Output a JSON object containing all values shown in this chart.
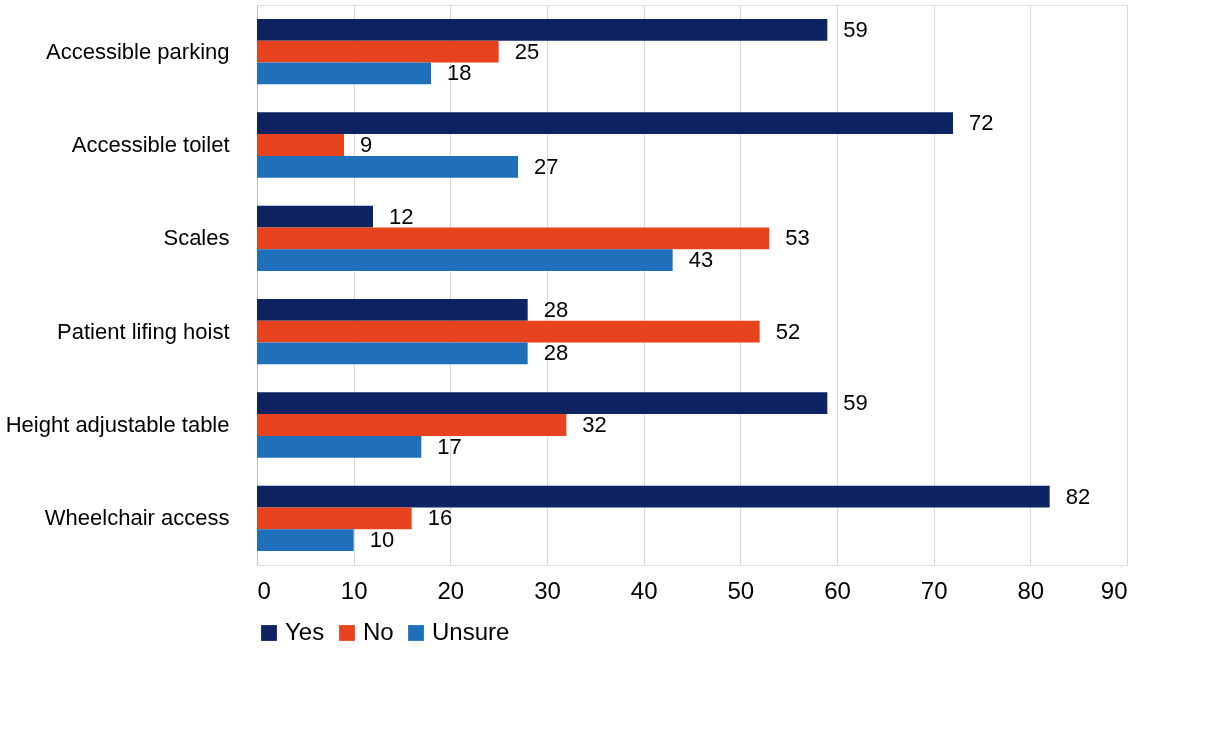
{
  "chart_data": {
    "type": "bar",
    "orientation": "horizontal",
    "categories": [
      "Accessible parking",
      "Accessible toilet",
      "Scales",
      "Patient lifing hoist",
      "Height adjustable table",
      "Wheelchair access"
    ],
    "series": [
      {
        "name": "Yes",
        "color": "#0e2361",
        "values": [
          59,
          72,
          12,
          28,
          59,
          82
        ]
      },
      {
        "name": "No",
        "color": "#e8431f",
        "values": [
          25,
          9,
          53,
          52,
          32,
          16
        ]
      },
      {
        "name": "Unsure",
        "color": "#1f6fbb",
        "values": [
          18,
          27,
          43,
          28,
          17,
          10
        ]
      }
    ],
    "xlim": [
      0,
      90
    ],
    "xticks": [
      0,
      10,
      20,
      30,
      40,
      50,
      60,
      70,
      80,
      90
    ],
    "grid": "x",
    "legend": "bottom",
    "data_labels": true
  }
}
